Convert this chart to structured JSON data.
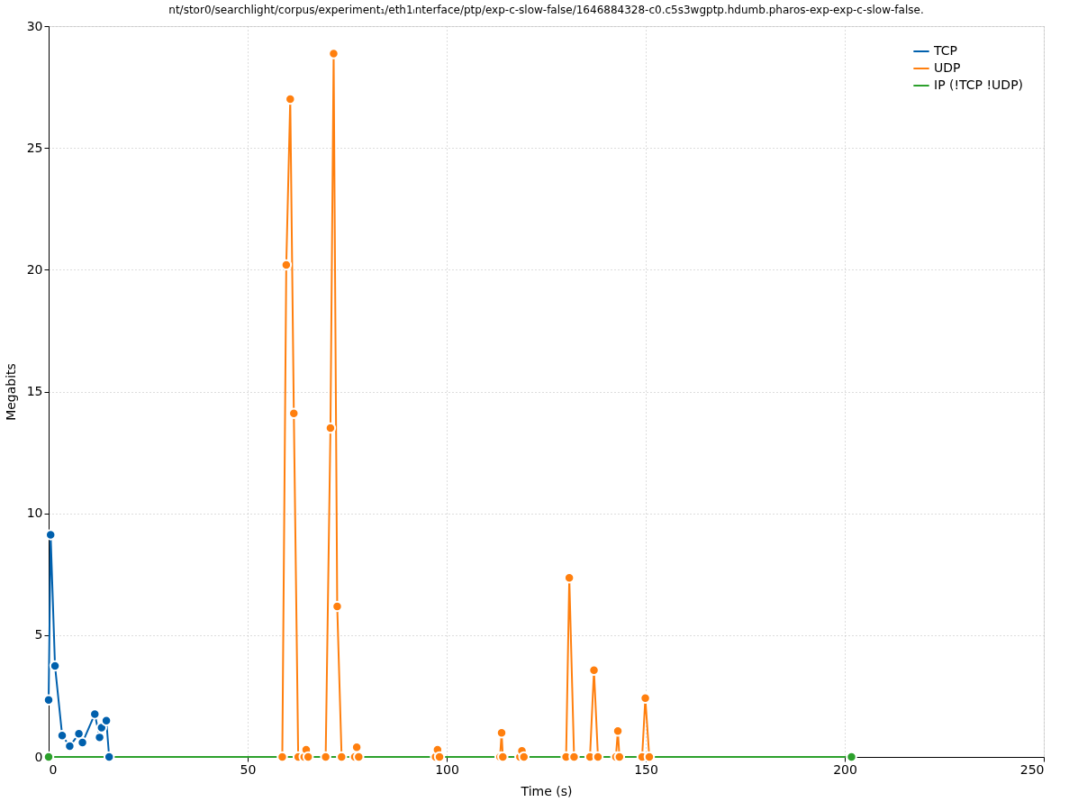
{
  "chart_data": {
    "type": "line",
    "title": "nt/stor0/searchlight/corpus/experiment₁/eth1ᵢnterface/ptp/exp-c-slow-false/1646884328-c0.c5s3wgptp.hdumb.pharos-exp-exp-c-slow-false.",
    "xlabel": "Time (s)",
    "ylabel": "Megabits",
    "xlim": [
      0,
      250
    ],
    "xticks": [
      0,
      50,
      100,
      150,
      200,
      250
    ],
    "ylim": [
      0,
      30
    ],
    "yticks": [
      0,
      5,
      10,
      15,
      20,
      25,
      30
    ],
    "grid": true,
    "legend": "top right",
    "marker": "circle",
    "line_style": "solid",
    "series": [
      {
        "name": "TCP",
        "color": "#0060ad",
        "x": [
          0,
          0.5,
          1.6,
          3.4,
          5.3,
          7.6,
          8.5,
          11.6,
          12.8,
          13.3,
          14.5,
          15.2
        ],
        "values": [
          2.34,
          9.12,
          3.74,
          0.88,
          0.44,
          0.95,
          0.59,
          1.76,
          0.8,
          1.2,
          1.49,
          0
        ]
      },
      {
        "name": "UDP",
        "color": "#ff7f0e",
        "x": [
          58.7,
          59.7,
          60.7,
          61.6,
          62.7,
          64.2,
          64.7,
          65.2,
          69.6,
          70.8,
          71.6,
          72.5,
          73.6,
          76.9,
          77.4,
          77.9,
          97.2,
          97.7,
          98.2,
          113.4,
          113.8,
          114.1,
          118.4,
          118.9,
          119.4,
          130.0,
          130.8,
          132.0,
          136.0,
          137.0,
          138.0,
          142.5,
          143.0,
          143.4,
          149.1,
          149.9,
          150.9
        ],
        "values": [
          0,
          20.2,
          27.0,
          14.1,
          0,
          0,
          0.3,
          0,
          0,
          13.5,
          28.87,
          6.18,
          0,
          0,
          0.4,
          0,
          0,
          0.3,
          0,
          0,
          0.99,
          0,
          0,
          0.25,
          0,
          0,
          7.35,
          0,
          0,
          3.56,
          0,
          0,
          1.06,
          0,
          0,
          2.41,
          0
        ]
      },
      {
        "name": "IP (!TCP  !UDP)",
        "color": "#2ca02c",
        "x": [
          0,
          201.7
        ],
        "values": [
          0,
          0
        ]
      }
    ]
  }
}
